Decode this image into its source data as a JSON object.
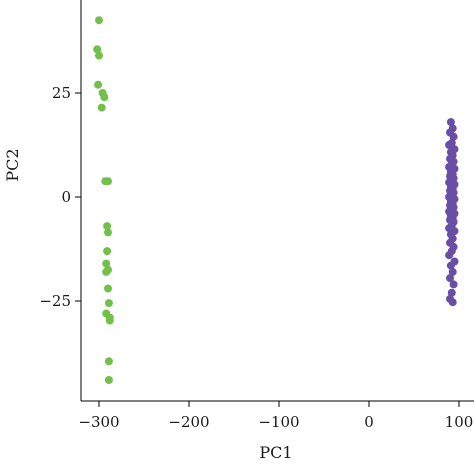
{
  "chart_data": {
    "type": "scatter",
    "xlabel": "PC1",
    "ylabel": "PC2",
    "xlim": [
      -325,
      105
    ],
    "ylim": [
      -49,
      46
    ],
    "x_ticks": [
      -300,
      -200,
      -100,
      0,
      100
    ],
    "x_tick_labels": [
      "−300",
      "−200",
      "−100",
      "0",
      "100"
    ],
    "y_ticks": [
      -25,
      0,
      25
    ],
    "y_tick_labels": [
      "−25",
      "0",
      "25"
    ],
    "grid": false,
    "legend": "none",
    "series": [
      {
        "color": "#72c04a",
        "points": [
          [
            -300,
            42.5
          ],
          [
            -302,
            35.5
          ],
          [
            -300,
            34.0
          ],
          [
            -301,
            27.0
          ],
          [
            -296,
            25.0
          ],
          [
            -294,
            24.0
          ],
          [
            -297,
            21.5
          ],
          [
            -293,
            3.8
          ],
          [
            -290,
            3.8
          ],
          [
            -291,
            -7.0
          ],
          [
            -290,
            -8.5
          ],
          [
            -291,
            -13.0
          ],
          [
            -292,
            -16.0
          ],
          [
            -290,
            -17.5
          ],
          [
            -292,
            -18.0
          ],
          [
            -290,
            -22.0
          ],
          [
            -289,
            -25.5
          ],
          [
            -292,
            -28.0
          ],
          [
            -288,
            -29.0
          ],
          [
            -288,
            -29.7
          ],
          [
            -289,
            -39.5
          ],
          [
            -289,
            -44.0
          ]
        ]
      },
      {
        "color": "#6a4ea6",
        "points": [
          [
            91,
            18.0
          ],
          [
            93,
            16.5
          ],
          [
            90,
            15.5
          ],
          [
            94,
            14.5
          ],
          [
            92,
            13.0
          ],
          [
            89,
            12.5
          ],
          [
            95,
            11.5
          ],
          [
            91,
            10.8
          ],
          [
            93,
            10.0
          ],
          [
            90,
            9.2
          ],
          [
            94,
            8.5
          ],
          [
            92,
            8.0
          ],
          [
            89,
            7.2
          ],
          [
            95,
            6.8
          ],
          [
            91,
            6.0
          ],
          [
            93,
            5.5
          ],
          [
            90,
            5.0
          ],
          [
            94,
            4.5
          ],
          [
            92,
            4.0
          ],
          [
            89,
            3.5
          ],
          [
            95,
            3.0
          ],
          [
            91,
            2.5
          ],
          [
            93,
            2.0
          ],
          [
            90,
            1.5
          ],
          [
            94,
            1.0
          ],
          [
            92,
            0.5
          ],
          [
            89,
            0.0
          ],
          [
            95,
            -0.5
          ],
          [
            91,
            -1.0
          ],
          [
            93,
            -1.5
          ],
          [
            90,
            -2.0
          ],
          [
            94,
            -2.5
          ],
          [
            92,
            -3.0
          ],
          [
            89,
            -3.5
          ],
          [
            95,
            -4.0
          ],
          [
            91,
            -4.5
          ],
          [
            93,
            -5.0
          ],
          [
            90,
            -5.5
          ],
          [
            94,
            -6.0
          ],
          [
            92,
            -6.8
          ],
          [
            89,
            -7.5
          ],
          [
            95,
            -8.2
          ],
          [
            91,
            -9.0
          ],
          [
            93,
            -10.0
          ],
          [
            90,
            -11.0
          ],
          [
            94,
            -12.0
          ],
          [
            92,
            -13.0
          ],
          [
            89,
            -14.0
          ],
          [
            95,
            -15.5
          ],
          [
            91,
            -16.5
          ],
          [
            93,
            -18.0
          ],
          [
            90,
            -19.5
          ],
          [
            94,
            -21.0
          ],
          [
            92,
            -23.0
          ],
          [
            90,
            -24.5
          ],
          [
            93,
            -25.3
          ]
        ]
      }
    ]
  }
}
